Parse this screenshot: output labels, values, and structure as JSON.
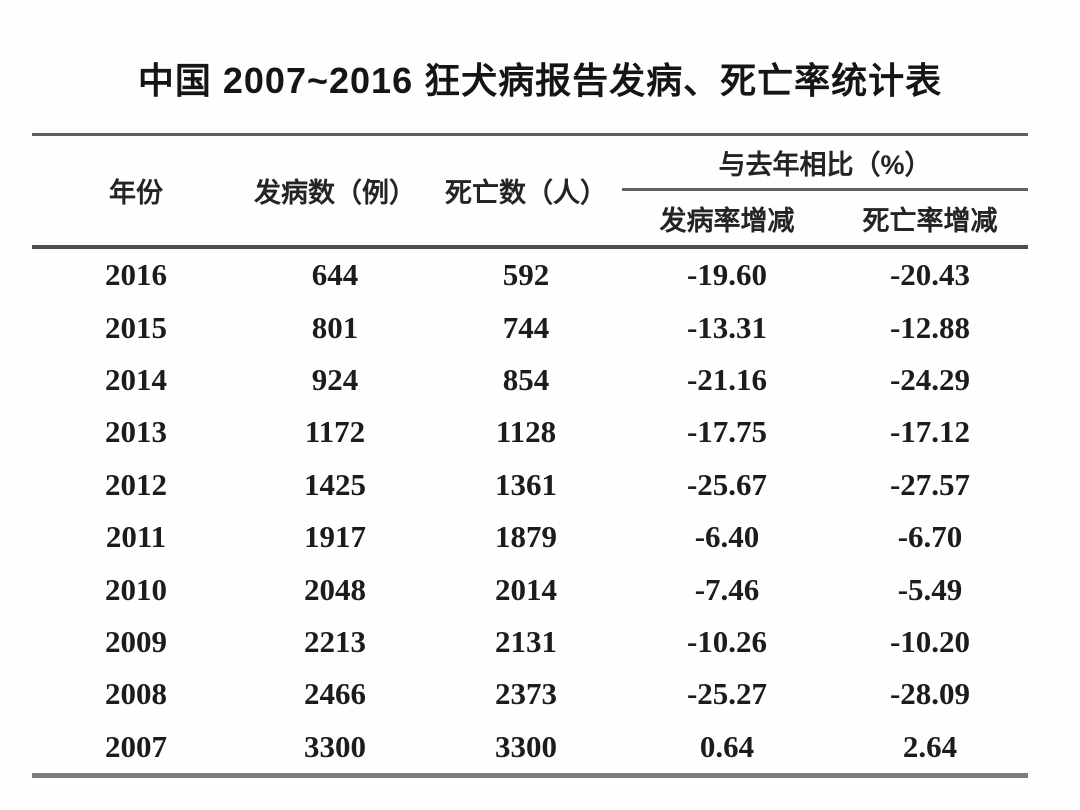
{
  "chart_data": {
    "type": "table",
    "title": "中国 2007~2016 狂犬病报告发病、死亡率统计表",
    "columns": {
      "year": "年份",
      "cases": "发病数（例）",
      "deaths": "死亡数（人）",
      "group": "与去年相比（%）",
      "incidence_change": "发病率增减",
      "mortality_change": "死亡率增减"
    },
    "rows": [
      {
        "year": "2016",
        "cases": "644",
        "deaths": "592",
        "incidence_change": "-19.60",
        "mortality_change": "-20.43"
      },
      {
        "year": "2015",
        "cases": "801",
        "deaths": "744",
        "incidence_change": "-13.31",
        "mortality_change": "-12.88"
      },
      {
        "year": "2014",
        "cases": "924",
        "deaths": "854",
        "incidence_change": "-21.16",
        "mortality_change": "-24.29"
      },
      {
        "year": "2013",
        "cases": "1172",
        "deaths": "1128",
        "incidence_change": "-17.75",
        "mortality_change": "-17.12"
      },
      {
        "year": "2012",
        "cases": "1425",
        "deaths": "1361",
        "incidence_change": "-25.67",
        "mortality_change": "-27.57"
      },
      {
        "year": "2011",
        "cases": "1917",
        "deaths": "1879",
        "incidence_change": "-6.40",
        "mortality_change": "-6.70"
      },
      {
        "year": "2010",
        "cases": "2048",
        "deaths": "2014",
        "incidence_change": "-7.46",
        "mortality_change": "-5.49"
      },
      {
        "year": "2009",
        "cases": "2213",
        "deaths": "2131",
        "incidence_change": "-10.26",
        "mortality_change": "-10.20"
      },
      {
        "year": "2008",
        "cases": "2466",
        "deaths": "2373",
        "incidence_change": "-25.27",
        "mortality_change": "-28.09"
      },
      {
        "year": "2007",
        "cases": "3300",
        "deaths": "3300",
        "incidence_change": "0.64",
        "mortality_change": "2.64"
      }
    ],
    "layout": {
      "grid": "horizontal rules only (three-line table style)",
      "legend_position": "none"
    }
  },
  "colors": {
    "background": "#fefefe",
    "text": "#1c1c1c",
    "rule_top": "#5e5e5e",
    "rule_header_bottom": "#4d4d4d",
    "rule_subheader": "#606060",
    "rule_table_bottom": "#7d7d7d"
  }
}
